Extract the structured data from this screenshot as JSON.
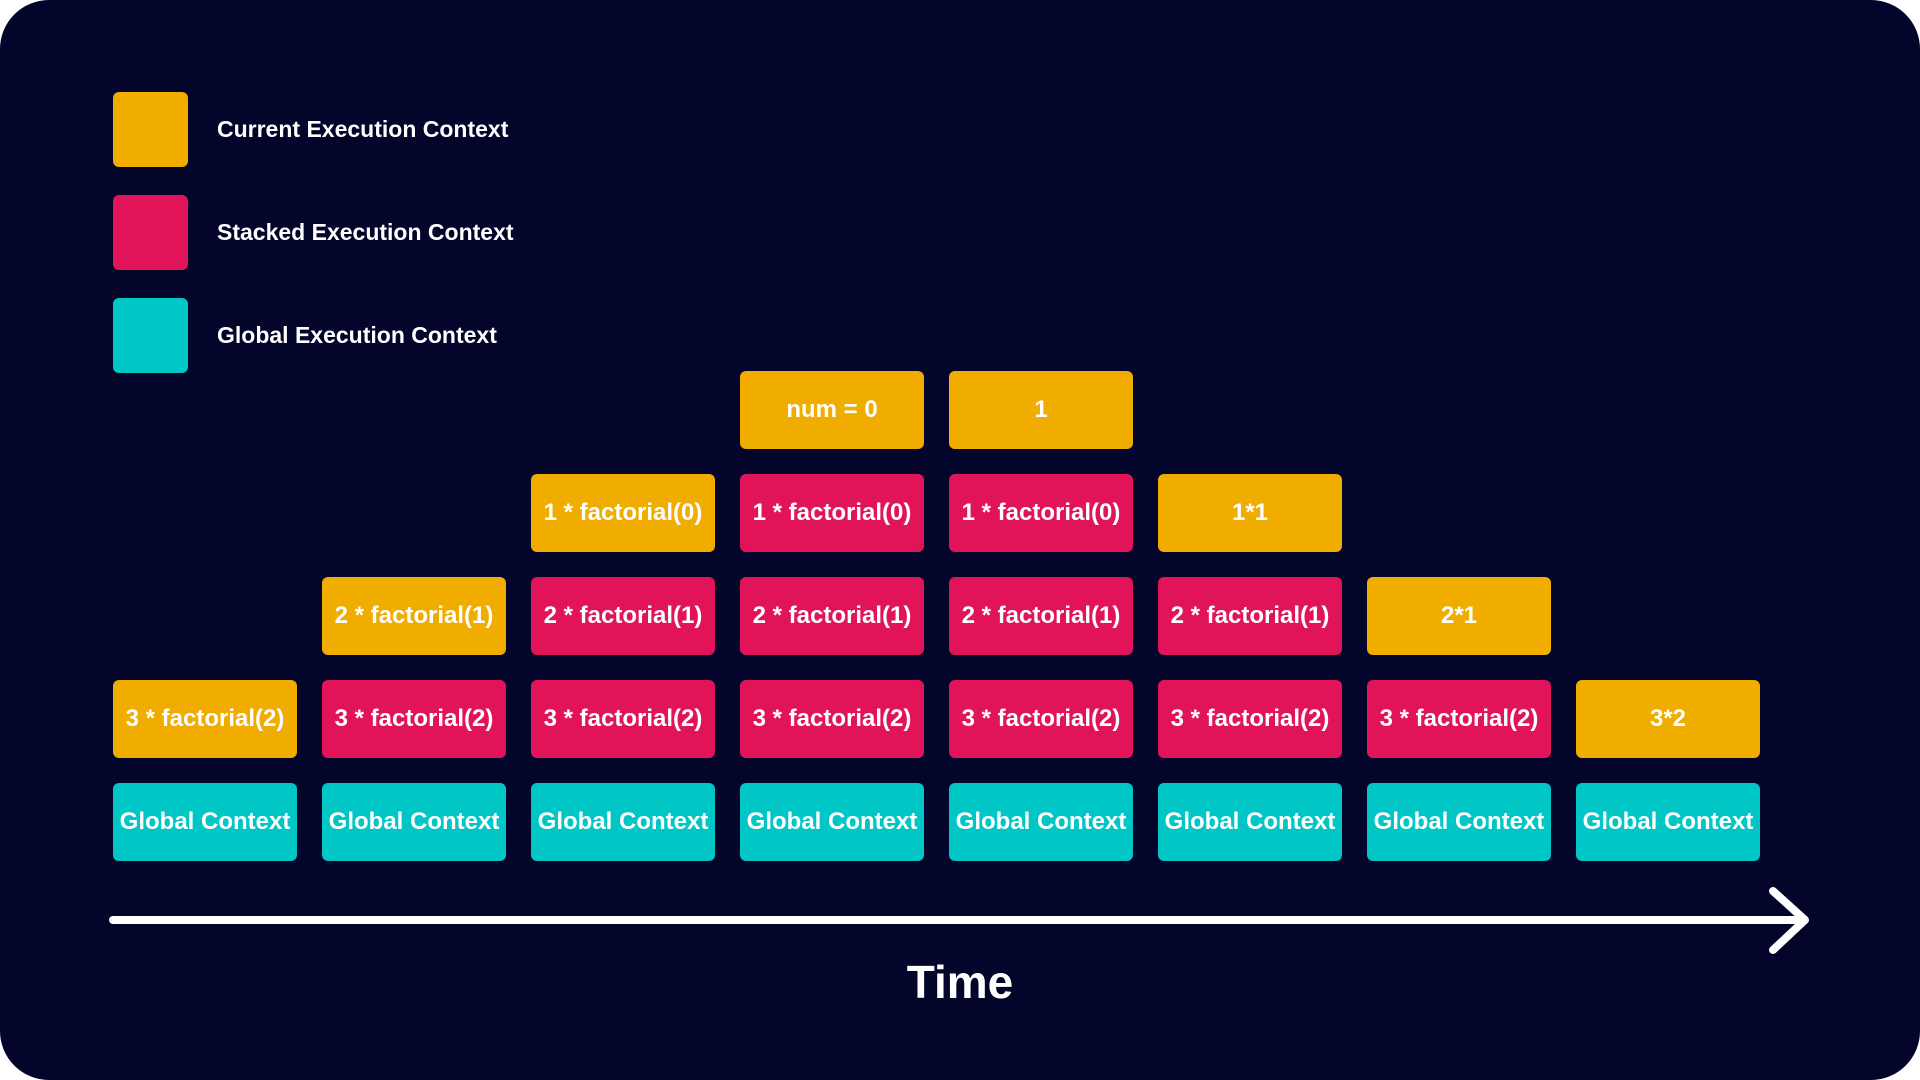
{
  "colors": {
    "background": "#03052a",
    "current": "#f0ad00",
    "stacked": "#e1145a",
    "global": "#00c6c6",
    "text": "#ffffff"
  },
  "legend": [
    {
      "kind": "current",
      "label": "Current Execution Context"
    },
    {
      "kind": "stacked",
      "label": "Stacked Execution Context"
    },
    {
      "kind": "global",
      "label": "Global Execution Context"
    }
  ],
  "stacks": [
    [
      {
        "kind": "global",
        "label": "Global Context"
      },
      {
        "kind": "current",
        "label": "3 * factorial(2)"
      }
    ],
    [
      {
        "kind": "global",
        "label": "Global Context"
      },
      {
        "kind": "stacked",
        "label": "3 * factorial(2)"
      },
      {
        "kind": "current",
        "label": "2 * factorial(1)"
      }
    ],
    [
      {
        "kind": "global",
        "label": "Global Context"
      },
      {
        "kind": "stacked",
        "label": "3 * factorial(2)"
      },
      {
        "kind": "stacked",
        "label": "2 * factorial(1)"
      },
      {
        "kind": "current",
        "label": "1 * factorial(0)"
      }
    ],
    [
      {
        "kind": "global",
        "label": "Global Context"
      },
      {
        "kind": "stacked",
        "label": "3 * factorial(2)"
      },
      {
        "kind": "stacked",
        "label": "2 * factorial(1)"
      },
      {
        "kind": "stacked",
        "label": "1 * factorial(0)"
      },
      {
        "kind": "current",
        "label": "num = 0"
      }
    ],
    [
      {
        "kind": "global",
        "label": "Global Context"
      },
      {
        "kind": "stacked",
        "label": "3 * factorial(2)"
      },
      {
        "kind": "stacked",
        "label": "2 * factorial(1)"
      },
      {
        "kind": "stacked",
        "label": "1 * factorial(0)"
      },
      {
        "kind": "current",
        "label": "1"
      }
    ],
    [
      {
        "kind": "global",
        "label": "Global Context"
      },
      {
        "kind": "stacked",
        "label": "3 * factorial(2)"
      },
      {
        "kind": "stacked",
        "label": "2 * factorial(1)"
      },
      {
        "kind": "current",
        "label": "1*1"
      }
    ],
    [
      {
        "kind": "global",
        "label": "Global Context"
      },
      {
        "kind": "stacked",
        "label": "3 * factorial(2)"
      },
      {
        "kind": "current",
        "label": "2*1"
      }
    ],
    [
      {
        "kind": "global",
        "label": "Global Context"
      },
      {
        "kind": "current",
        "label": "3*2"
      }
    ]
  ],
  "axis": {
    "label": "Time",
    "arrow_icon": "right-arrow-icon"
  }
}
